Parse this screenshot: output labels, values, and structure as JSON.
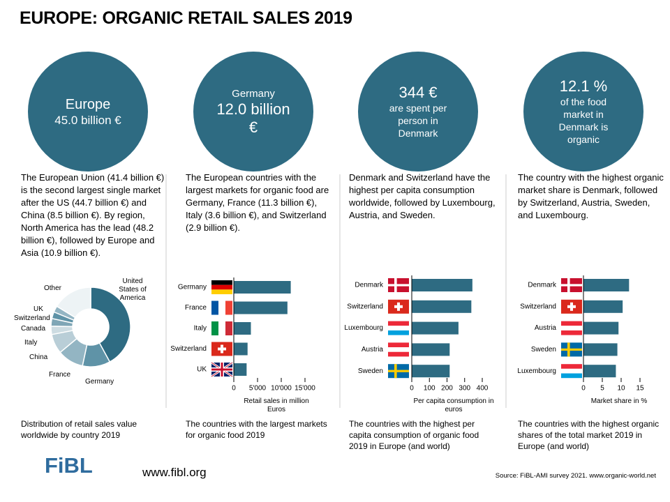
{
  "title": "EUROPE: ORGANIC RETAIL SALES 2019",
  "circles": [
    {
      "line1": "Europe",
      "line2": "45.0 billion €"
    },
    {
      "line1": "Germany",
      "line2": "12.0 billion €"
    },
    {
      "line1": "344 €",
      "line2": "are spent per person in Denmark"
    },
    {
      "line1": "12.1 %",
      "line2": "of the food market in Denmark is organic"
    }
  ],
  "paragraphs": [
    "The European Union (41.4 billion €) is the second largest single market after the US (44.7 billion €) and China (8.5 billion €). By region, North America has the lead (48.2 billion €), followed by Europe and Asia (10.9 billion €).",
    "The European countries with the largest markets for organic food are Germany, France (11.3 billion €), Italy (3.6 billion €), and Switzerland (2.9 billion €).",
    "Denmark and Switzerland have the highest per capita consumption worldwide, followed by Luxembourg, Austria, and Sweden.",
    "The country with the highest organic market share is Denmark, followed by Switzerland, Austria, Sweden, and Luxembourg."
  ],
  "chart_data": [
    {
      "type": "pie",
      "caption": "Distribution of retail sales value worldwide  by country 2019",
      "categories": [
        "United States of America",
        "Germany",
        "France",
        "China",
        "Italy",
        "Canada",
        "Switzerland",
        "UK",
        "Other"
      ],
      "values": [
        44.7,
        12.0,
        11.3,
        8.5,
        3.6,
        3.3,
        2.9,
        2.7,
        17.3
      ],
      "colors": [
        "#2e6b82",
        "#5f93a7",
        "#93b5c3",
        "#b9ced7",
        "#cddce2",
        "#7fa6b6",
        "#5f93a7",
        "#93b5c3",
        "#edf3f5"
      ]
    },
    {
      "type": "bar",
      "orientation": "horizontal",
      "caption": "The countries with the largest markets for organic food 2019",
      "categories": [
        "Germany",
        "France",
        "Italy",
        "Switzerland",
        "UK"
      ],
      "values": [
        12000,
        11300,
        3600,
        2900,
        2700
      ],
      "color": "#2e6b82",
      "xlim": [
        0,
        15000
      ],
      "xticks": [
        0,
        {
          "value": 5000,
          "label": "5'000"
        },
        {
          "value": 10000,
          "label": "10'000"
        },
        {
          "value": 15000,
          "label": "15'000"
        }
      ],
      "xlabel": "Retail sales in million Euros"
    },
    {
      "type": "bar",
      "orientation": "horizontal",
      "caption": "The countries with the highest per capita consumption of organic food 2019 in Europe (and world)",
      "categories": [
        "Denmark",
        "Switzerland",
        "Luxembourg",
        "Austria",
        "Sweden"
      ],
      "values": [
        344,
        338,
        265,
        215,
        215
      ],
      "color": "#2e6b82",
      "xlim": [
        0,
        400
      ],
      "xticks": [
        0,
        100,
        200,
        300,
        400
      ],
      "xlabel": "Per capita consumption in euros"
    },
    {
      "type": "bar",
      "orientation": "horizontal",
      "caption": "The countries with the highest organic shares of the total market 2019 in Europe (and world)",
      "categories": [
        "Denmark",
        "Switzerland",
        "Austria",
        "Sweden",
        "Luxembourg"
      ],
      "values": [
        12.1,
        10.4,
        9.3,
        9.0,
        8.6
      ],
      "color": "#2e6b82",
      "xlim": [
        0,
        15
      ],
      "xticks": [
        0,
        5,
        10,
        15
      ],
      "xlabel": "Market share in %"
    }
  ],
  "footer": {
    "logo": "FiBL",
    "url": "www.fibl.org",
    "source": "Source: FiBL-AMI survey 2021. www.organic-world.net"
  }
}
